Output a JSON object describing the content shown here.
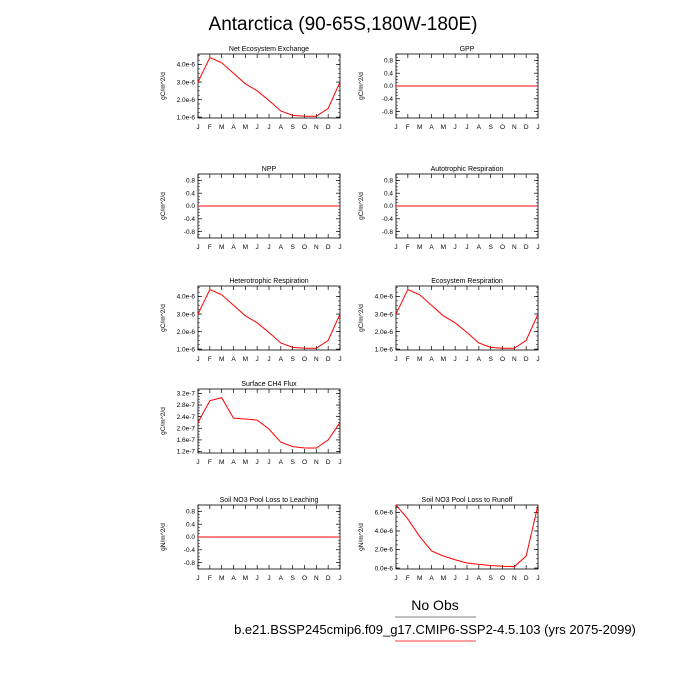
{
  "title": "Antarctica (90-65S,180W-180E)",
  "months": [
    "J",
    "F",
    "M",
    "A",
    "M",
    "J",
    "J",
    "A",
    "S",
    "O",
    "N",
    "D",
    "J"
  ],
  "legend": {
    "obs_label": "No Obs",
    "case_label": "b.e21.BSSP245cmip6.f09_g17.CMIP6-SSP2-4.5.103 (yrs 2075-2099)",
    "obs_color": "#000000",
    "case_color": "#ff0000"
  },
  "colors": {
    "line": "#ff0000",
    "axis": "#000000"
  },
  "chart_data": [
    {
      "type": "line",
      "title": "Net Ecosystem Exchange",
      "ylabel": "gC/m^2/d",
      "ylim": [
        9.5e-07,
        4.6e-06
      ],
      "yticks": [
        1e-06,
        2e-06,
        3e-06,
        4e-06
      ],
      "ytick_labels": [
        "1.0e-6",
        "2.0e-6",
        "3.0e-6",
        "4.0e-6"
      ],
      "y": [
        3e-06,
        4.4e-06,
        4.1e-06,
        3.5e-06,
        2.9e-06,
        2.5e-06,
        1.95e-06,
        1.35e-06,
        1.1e-06,
        1.05e-06,
        1.05e-06,
        1.5e-06,
        3e-06
      ]
    },
    {
      "type": "line",
      "title": "GPP",
      "ylabel": "gC/m^2/d",
      "ylim": [
        -1.0,
        1.0
      ],
      "yticks": [
        -0.8,
        -0.4,
        0.0,
        0.4,
        0.8
      ],
      "ytick_labels": [
        "-0.8",
        "-0.4",
        "0.0",
        "0.4",
        "0.8"
      ],
      "y": [
        0,
        0,
        0,
        0,
        0,
        0,
        0,
        0,
        0,
        0,
        0,
        0,
        0
      ]
    },
    {
      "type": "line",
      "title": "NPP",
      "ylabel": "gC/m^2/d",
      "ylim": [
        -1.0,
        1.0
      ],
      "yticks": [
        -0.8,
        -0.4,
        0.0,
        0.4,
        0.8
      ],
      "ytick_labels": [
        "-0.8",
        "-0.4",
        "0.0",
        "0.4",
        "0.8"
      ],
      "y": [
        0,
        0,
        0,
        0,
        0,
        0,
        0,
        0,
        0,
        0,
        0,
        0,
        0
      ]
    },
    {
      "type": "line",
      "title": "Autotrophic Respiration",
      "ylabel": "gC/m^2/d",
      "ylim": [
        -1.0,
        1.0
      ],
      "yticks": [
        -0.8,
        -0.4,
        0.0,
        0.4,
        0.8
      ],
      "ytick_labels": [
        "-0.8",
        "-0.4",
        "0.0",
        "0.4",
        "0.8"
      ],
      "y": [
        0,
        0,
        0,
        0,
        0,
        0,
        0,
        0,
        0,
        0,
        0,
        0,
        0
      ]
    },
    {
      "type": "line",
      "title": "Heterotrophic Respiration",
      "ylabel": "gC/m^2/d",
      "ylim": [
        9.5e-07,
        4.6e-06
      ],
      "yticks": [
        1e-06,
        2e-06,
        3e-06,
        4e-06
      ],
      "ytick_labels": [
        "1.0e-6",
        "2.0e-6",
        "3.0e-6",
        "4.0e-6"
      ],
      "y": [
        3e-06,
        4.4e-06,
        4.1e-06,
        3.5e-06,
        2.9e-06,
        2.5e-06,
        1.95e-06,
        1.35e-06,
        1.1e-06,
        1.05e-06,
        1.05e-06,
        1.5e-06,
        3e-06
      ]
    },
    {
      "type": "line",
      "title": "Ecosystem Respiration",
      "ylabel": "gC/m^2/d",
      "ylim": [
        9.5e-07,
        4.6e-06
      ],
      "yticks": [
        1e-06,
        2e-06,
        3e-06,
        4e-06
      ],
      "ytick_labels": [
        "1.0e-6",
        "2.0e-6",
        "3.0e-6",
        "4.0e-6"
      ],
      "y": [
        3e-06,
        4.4e-06,
        4.1e-06,
        3.5e-06,
        2.9e-06,
        2.5e-06,
        1.95e-06,
        1.35e-06,
        1.1e-06,
        1.05e-06,
        1.05e-06,
        1.5e-06,
        3e-06
      ]
    },
    {
      "type": "line",
      "title": "Surface CH4 Flux",
      "ylabel": "gC/m^2/d",
      "ylim": [
        1.15e-07,
        3.35e-07
      ],
      "yticks": [
        1.2e-07,
        1.6e-07,
        2e-07,
        2.4e-07,
        2.8e-07,
        3.2e-07
      ],
      "ytick_labels": [
        "1.2e-7",
        "1.6e-7",
        "2.0e-7",
        "2.4e-7",
        "2.8e-7",
        "3.2e-7"
      ],
      "y": [
        2.2e-07,
        2.95e-07,
        3.05e-07,
        2.35e-07,
        2.32e-07,
        2.28e-07,
        1.97e-07,
        1.52e-07,
        1.37e-07,
        1.32e-07,
        1.32e-07,
        1.6e-07,
        2.2e-07
      ]
    },
    {
      "type": "line",
      "title": "Soil NO3 Pool Loss to Leaching",
      "ylabel": "gN/m^2/d",
      "ylim": [
        -1.0,
        1.0
      ],
      "yticks": [
        -0.8,
        -0.4,
        0.0,
        0.4,
        0.8
      ],
      "ytick_labels": [
        "-0.8",
        "-0.4",
        "0.0",
        "0.4",
        "0.8"
      ],
      "y": [
        0,
        0,
        0,
        0,
        0,
        0,
        0,
        0,
        0,
        0,
        0,
        0,
        0
      ]
    },
    {
      "type": "line",
      "title": "Soil NO3 Pool Loss to Runoff",
      "ylabel": "gN/m^2/d",
      "ylim": [
        -1e-07,
        6.8e-06
      ],
      "yticks": [
        0,
        2e-06,
        4e-06,
        6e-06
      ],
      "ytick_labels": [
        "0.0e-6",
        "2.0e-6",
        "4.0e-6",
        "6.0e-6"
      ],
      "y": [
        6.8e-06,
        5.3e-06,
        3.4e-06,
        1.85e-06,
        1.3e-06,
        9e-07,
        5.5e-07,
        4e-07,
        2.8e-07,
        2e-07,
        1.5e-07,
        1.3e-06,
        6.8e-06
      ]
    }
  ]
}
